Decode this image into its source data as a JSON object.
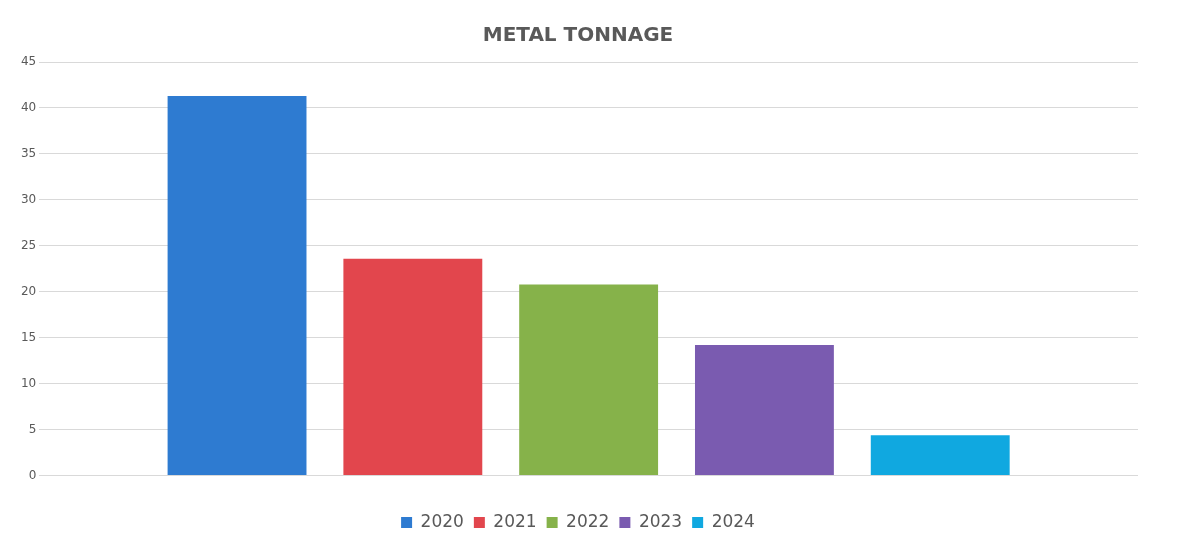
{
  "chart_data": {
    "type": "bar",
    "title": "METAL TONNAGE",
    "categories": [
      null
    ],
    "series": [
      {
        "name": "2020",
        "color": "#2e7bd1",
        "values": [
          41.3
        ]
      },
      {
        "name": "2021",
        "color": "#e2464d",
        "values": [
          23.6
        ]
      },
      {
        "name": "2022",
        "color": "#86b24a",
        "values": [
          20.8
        ]
      },
      {
        "name": "2023",
        "color": "#7a5bb0",
        "values": [
          14.2
        ]
      },
      {
        "name": "2024",
        "color": "#10a8e0",
        "values": [
          4.4
        ]
      }
    ],
    "ylim": [
      0,
      45
    ],
    "yticks": [
      0,
      5,
      10,
      15,
      20,
      25,
      30,
      35,
      40,
      45
    ],
    "grid": "y",
    "legend": "bottom"
  }
}
